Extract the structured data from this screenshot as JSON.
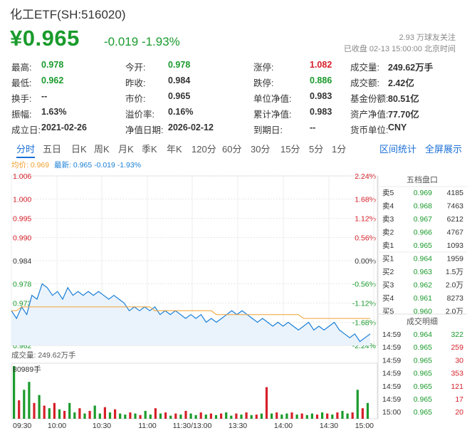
{
  "header": {
    "title": "化工ETF(SH:516020)",
    "price": "¥0.965",
    "change": "-0.019",
    "change_pct": "-1.93%",
    "followers": "2.93 万球友关注",
    "status": "已收盘 02-13 15:00:00 北京时间"
  },
  "quote": {
    "rows": [
      [
        [
          "最高:",
          "0.978",
          "green"
        ],
        [
          "今开:",
          "0.978",
          "green"
        ],
        [
          "涨停:",
          "1.082",
          "red"
        ],
        [
          "成交量:",
          "249.62万手",
          ""
        ]
      ],
      [
        [
          "最低:",
          "0.962",
          "green"
        ],
        [
          "昨收:",
          "0.984",
          ""
        ],
        [
          "跌停:",
          "0.886",
          "green"
        ],
        [
          "成交额:",
          "2.42亿",
          ""
        ]
      ],
      [
        [
          "换手:",
          "--",
          ""
        ],
        [
          "市价:",
          "0.965",
          ""
        ],
        [
          "单位净值:",
          "0.983",
          ""
        ],
        [
          "基金份额:",
          "80.51亿",
          ""
        ]
      ],
      [
        [
          "振幅:",
          "1.63%",
          ""
        ],
        [
          "溢价率:",
          "0.16%",
          ""
        ],
        [
          "累计净值:",
          "0.983",
          ""
        ],
        [
          "资产净值:",
          "77.70亿",
          ""
        ]
      ],
      [
        [
          "成立日:",
          "2021-02-26",
          ""
        ],
        [
          "净值日期:",
          "2026-02-12",
          ""
        ],
        [
          "到期日:",
          "--",
          ""
        ],
        [
          "货币单位:",
          "CNY",
          ""
        ]
      ]
    ]
  },
  "tabs": [
    "分时",
    "五日",
    "日K",
    "周K",
    "月K",
    "季K",
    "年K",
    "120分",
    "60分",
    "30分",
    "15分",
    "5分",
    "1分"
  ],
  "tab_links": {
    "interval_stats": "区间统计",
    "fullscreen": "全屏展示"
  },
  "legend": {
    "avg": "均价: 0.969",
    "latest": "最新: 0.965 -0.019 -1.93%"
  },
  "chart_data": {
    "type": "line",
    "y_ticks": [
      "1.006",
      "1.000",
      "0.995",
      "0.990",
      "0.984",
      "0.978",
      "0.973",
      "0.968",
      "0.962"
    ],
    "pct_ticks": [
      "2.24%",
      "1.68%",
      "1.12%",
      "0.56%",
      "0.00%",
      "-0.56%",
      "-1.12%",
      "-1.68%",
      "-2.24%"
    ],
    "ylim": [
      0.962,
      1.006
    ],
    "prev_close": 0.984,
    "x_ticks": [
      "09:30",
      "10:00",
      "10:30",
      "11:00",
      "11:30/13:00",
      "13:30",
      "14:00",
      "14:30",
      "15:00"
    ],
    "series": [
      {
        "name": "最新",
        "values": [
          0.971,
          0.969,
          0.972,
          0.97,
          0.975,
          0.974,
          0.978,
          0.977,
          0.975,
          0.976,
          0.974,
          0.977,
          0.975,
          0.976,
          0.975,
          0.976,
          0.975,
          0.976,
          0.975,
          0.974,
          0.975,
          0.974,
          0.973,
          0.971,
          0.972,
          0.971,
          0.972,
          0.971,
          0.972,
          0.97,
          0.971,
          0.97,
          0.971,
          0.97,
          0.969,
          0.97,
          0.969,
          0.97,
          0.968,
          0.969,
          0.968,
          0.969,
          0.97,
          0.971,
          0.97,
          0.971,
          0.97,
          0.969,
          0.968,
          0.969,
          0.968,
          0.967,
          0.968,
          0.967,
          0.968,
          0.967,
          0.966,
          0.967,
          0.968,
          0.966,
          0.967,
          0.966,
          0.967,
          0.968,
          0.966,
          0.965,
          0.964,
          0.965,
          0.963,
          0.964,
          0.965
        ]
      },
      {
        "name": "均价",
        "values": [
          0.971,
          0.971,
          0.972,
          0.972,
          0.972,
          0.972,
          0.972,
          0.972,
          0.972,
          0.972,
          0.972,
          0.972,
          0.972,
          0.972,
          0.972,
          0.972,
          0.972,
          0.972,
          0.972,
          0.972,
          0.972,
          0.972,
          0.972,
          0.972,
          0.972,
          0.972,
          0.972,
          0.972,
          0.971,
          0.971,
          0.971,
          0.971,
          0.971,
          0.971,
          0.971,
          0.971,
          0.971,
          0.971,
          0.971,
          0.971,
          0.97,
          0.97,
          0.97,
          0.97,
          0.97,
          0.97,
          0.97,
          0.97,
          0.97,
          0.97,
          0.97,
          0.97,
          0.97,
          0.97,
          0.97,
          0.97,
          0.97,
          0.969,
          0.969,
          0.969,
          0.969,
          0.969,
          0.969,
          0.969,
          0.969,
          0.969,
          0.969,
          0.969,
          0.969,
          0.969,
          0.969
        ]
      }
    ]
  },
  "volume": {
    "label": "成交量: 249.62万手",
    "max_label": "80989手",
    "bars": [
      1.0,
      0.35,
      0.55,
      0.7,
      0.3,
      0.45,
      0.25,
      0.2,
      0.3,
      0.18,
      0.15,
      0.3,
      0.12,
      0.2,
      0.1,
      0.15,
      0.25,
      0.1,
      0.22,
      0.12,
      0.18,
      0.1,
      0.08,
      0.12,
      0.1,
      0.07,
      0.15,
      0.08,
      0.2,
      0.1,
      0.12,
      0.06,
      0.1,
      0.08,
      0.15,
      0.1,
      0.07,
      0.12,
      0.08,
      0.1,
      0.07,
      0.1,
      0.12,
      0.06,
      0.1,
      0.08,
      0.12,
      0.07,
      0.08,
      0.1,
      0.6,
      0.1,
      0.12,
      0.08,
      0.1,
      0.12,
      0.08,
      0.1,
      0.07,
      0.1,
      0.08,
      0.12,
      0.1,
      0.08,
      0.12,
      0.15,
      0.1,
      0.12,
      0.55,
      0.2,
      0.3
    ],
    "bar_colors": [
      "g",
      "r",
      "g",
      "g",
      "r",
      "g",
      "r",
      "g",
      "r",
      "g",
      "r",
      "g",
      "g",
      "r",
      "g",
      "r",
      "g",
      "g",
      "r",
      "g",
      "r",
      "g",
      "g",
      "r",
      "g",
      "r",
      "g",
      "g",
      "r",
      "g",
      "r",
      "g",
      "r",
      "g",
      "r",
      "g",
      "g",
      "r",
      "g",
      "r",
      "g",
      "r",
      "g",
      "g",
      "r",
      "g",
      "r",
      "g",
      "r",
      "g",
      "r",
      "g",
      "r",
      "g",
      "g",
      "r",
      "g",
      "r",
      "g",
      "g",
      "r",
      "g",
      "r",
      "g",
      "r",
      "g",
      "g",
      "r",
      "g",
      "r",
      "g"
    ]
  },
  "order_book": {
    "title": "五档盘口",
    "rows": [
      [
        "卖5",
        "0.969",
        "4185"
      ],
      [
        "卖4",
        "0.968",
        "7463"
      ],
      [
        "卖3",
        "0.967",
        "6212"
      ],
      [
        "卖2",
        "0.966",
        "4767"
      ],
      [
        "卖1",
        "0.965",
        "1093"
      ],
      [
        "买1",
        "0.964",
        "1959"
      ],
      [
        "买2",
        "0.963",
        "1.5万"
      ],
      [
        "买3",
        "0.962",
        "2.0万"
      ],
      [
        "买4",
        "0.961",
        "8273"
      ],
      [
        "买5",
        "0.960",
        "2.0万"
      ]
    ]
  },
  "ticks": {
    "title": "成交明细",
    "rows": [
      [
        "14:59",
        "0.964",
        "322",
        "green"
      ],
      [
        "14:59",
        "0.965",
        "259",
        "red"
      ],
      [
        "14:59",
        "0.965",
        "30",
        "red"
      ],
      [
        "14:59",
        "0.965",
        "353",
        "red"
      ],
      [
        "14:59",
        "0.965",
        "121",
        "red"
      ],
      [
        "14:59",
        "0.965",
        "17",
        "red"
      ],
      [
        "15:00",
        "0.965",
        "20",
        "red"
      ]
    ]
  },
  "colors": {
    "price_line": "#1a7fd6",
    "avg_line": "#f0a030",
    "down": "#1a9b2c",
    "up": "#d6202a"
  }
}
